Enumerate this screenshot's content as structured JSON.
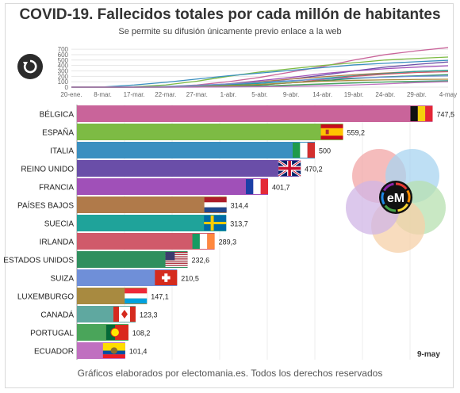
{
  "header": {
    "title": "COVID-19. Fallecidos totales por cada millón de habitantes",
    "subtitle": "Se permite su difusión únicamente previo enlace a la web"
  },
  "footer": {
    "text": "Gráficos elaborados por electomania.es. Todos los derechos reservados"
  },
  "current_date": "9-may",
  "logo": {
    "text": "eM"
  },
  "icons": {
    "replay": "replay-icon"
  },
  "chart_data": [
    {
      "type": "line",
      "x": [
        "20-ene.",
        "8-mar.",
        "17-mar.",
        "22-mar.",
        "27-mar.",
        "1-abr.",
        "5-abr.",
        "9-abr.",
        "14-abr.",
        "19-abr.",
        "24-abr.",
        "29-abr.",
        "4-may"
      ],
      "yticks": [
        0,
        100,
        200,
        300,
        400,
        500,
        600,
        700
      ],
      "ylim": [
        0,
        760
      ],
      "series": [
        {
          "color": "#c9649a",
          "values": [
            0,
            0,
            2,
            10,
            40,
            100,
            180,
            280,
            380,
            500,
            600,
            670,
            730
          ]
        },
        {
          "color": "#7dbb44",
          "values": [
            0,
            0,
            8,
            40,
            110,
            200,
            280,
            340,
            400,
            450,
            500,
            530,
            555
          ]
        },
        {
          "color": "#3a8fc0",
          "values": [
            0,
            3,
            40,
            90,
            150,
            210,
            260,
            310,
            360,
            410,
            440,
            470,
            495
          ]
        },
        {
          "color": "#6a4ea8",
          "values": [
            0,
            0,
            1,
            5,
            20,
            50,
            90,
            150,
            220,
            300,
            370,
            420,
            465
          ]
        },
        {
          "color": "#a050b8",
          "values": [
            0,
            0,
            2,
            6,
            20,
            60,
            120,
            180,
            250,
            300,
            340,
            370,
            395
          ]
        },
        {
          "color": "#b07a4a",
          "values": [
            0,
            0,
            1,
            6,
            25,
            60,
            100,
            150,
            190,
            230,
            260,
            290,
            310
          ]
        },
        {
          "color": "#1fa39a",
          "values": [
            0,
            0,
            1,
            4,
            15,
            40,
            70,
            110,
            160,
            210,
            250,
            290,
            310
          ]
        },
        {
          "color": "#d05a6a",
          "values": [
            0,
            0,
            0,
            2,
            8,
            20,
            40,
            80,
            140,
            200,
            240,
            270,
            285
          ]
        },
        {
          "color": "#2f8f5e",
          "values": [
            0,
            0,
            0,
            1,
            5,
            15,
            40,
            80,
            120,
            160,
            190,
            210,
            230
          ]
        },
        {
          "color": "#6f8fd8",
          "values": [
            0,
            0,
            5,
            15,
            35,
            60,
            90,
            120,
            150,
            170,
            185,
            200,
            208
          ]
        },
        {
          "color": "#a88a40",
          "values": [
            0,
            0,
            0,
            3,
            10,
            30,
            50,
            80,
            110,
            125,
            135,
            142,
            146
          ]
        },
        {
          "color": "#5fa8a0",
          "values": [
            0,
            0,
            0,
            1,
            4,
            10,
            20,
            35,
            55,
            75,
            95,
            110,
            122
          ]
        },
        {
          "color": "#4aa55a",
          "values": [
            0,
            0,
            0,
            1,
            3,
            8,
            20,
            40,
            60,
            80,
            95,
            100,
            107
          ]
        },
        {
          "color": "#c070c0",
          "values": [
            0,
            0,
            0,
            0,
            1,
            4,
            8,
            15,
            25,
            40,
            60,
            85,
            100
          ]
        }
      ]
    },
    {
      "type": "bar",
      "categories": [
        "BÉLGICA",
        "ESPAÑA",
        "ITALIA",
        "REINO UNIDO",
        "FRANCIA",
        "PAÍSES BAJOS",
        "SUECIA",
        "IRLANDA",
        "ESTADOS UNIDOS",
        "SUIZA",
        "LUXEMBURGO",
        "CANADÁ",
        "PORTUGAL",
        "ECUADOR"
      ],
      "values": [
        747.5,
        559.2,
        500,
        470.2,
        401.7,
        314.4,
        313.7,
        289.3,
        232.6,
        210.5,
        147.1,
        123.3,
        108.2,
        101.4
      ],
      "value_labels": [
        "747,5",
        "559,2",
        "500",
        "470,2",
        "401,7",
        "314,4",
        "313,7",
        "289,3",
        "232,6",
        "210,5",
        "147,1",
        "123,3",
        "108,2",
        "101,4"
      ],
      "colors": [
        "#c9649a",
        "#7dbb44",
        "#3a8fc0",
        "#6a4ea8",
        "#a050b8",
        "#b07a4a",
        "#1fa39a",
        "#d05a6a",
        "#2f8f5e",
        "#6f8fd8",
        "#a88a40",
        "#5fa8a0",
        "#4aa55a",
        "#c070c0"
      ],
      "flags": [
        "belgium",
        "spain",
        "italy",
        "uk",
        "france",
        "netherlands",
        "sweden",
        "ireland",
        "usa",
        "switzerland",
        "luxembourg",
        "canada",
        "portugal",
        "ecuador"
      ],
      "xlim": [
        0,
        800
      ],
      "grid": true
    }
  ]
}
